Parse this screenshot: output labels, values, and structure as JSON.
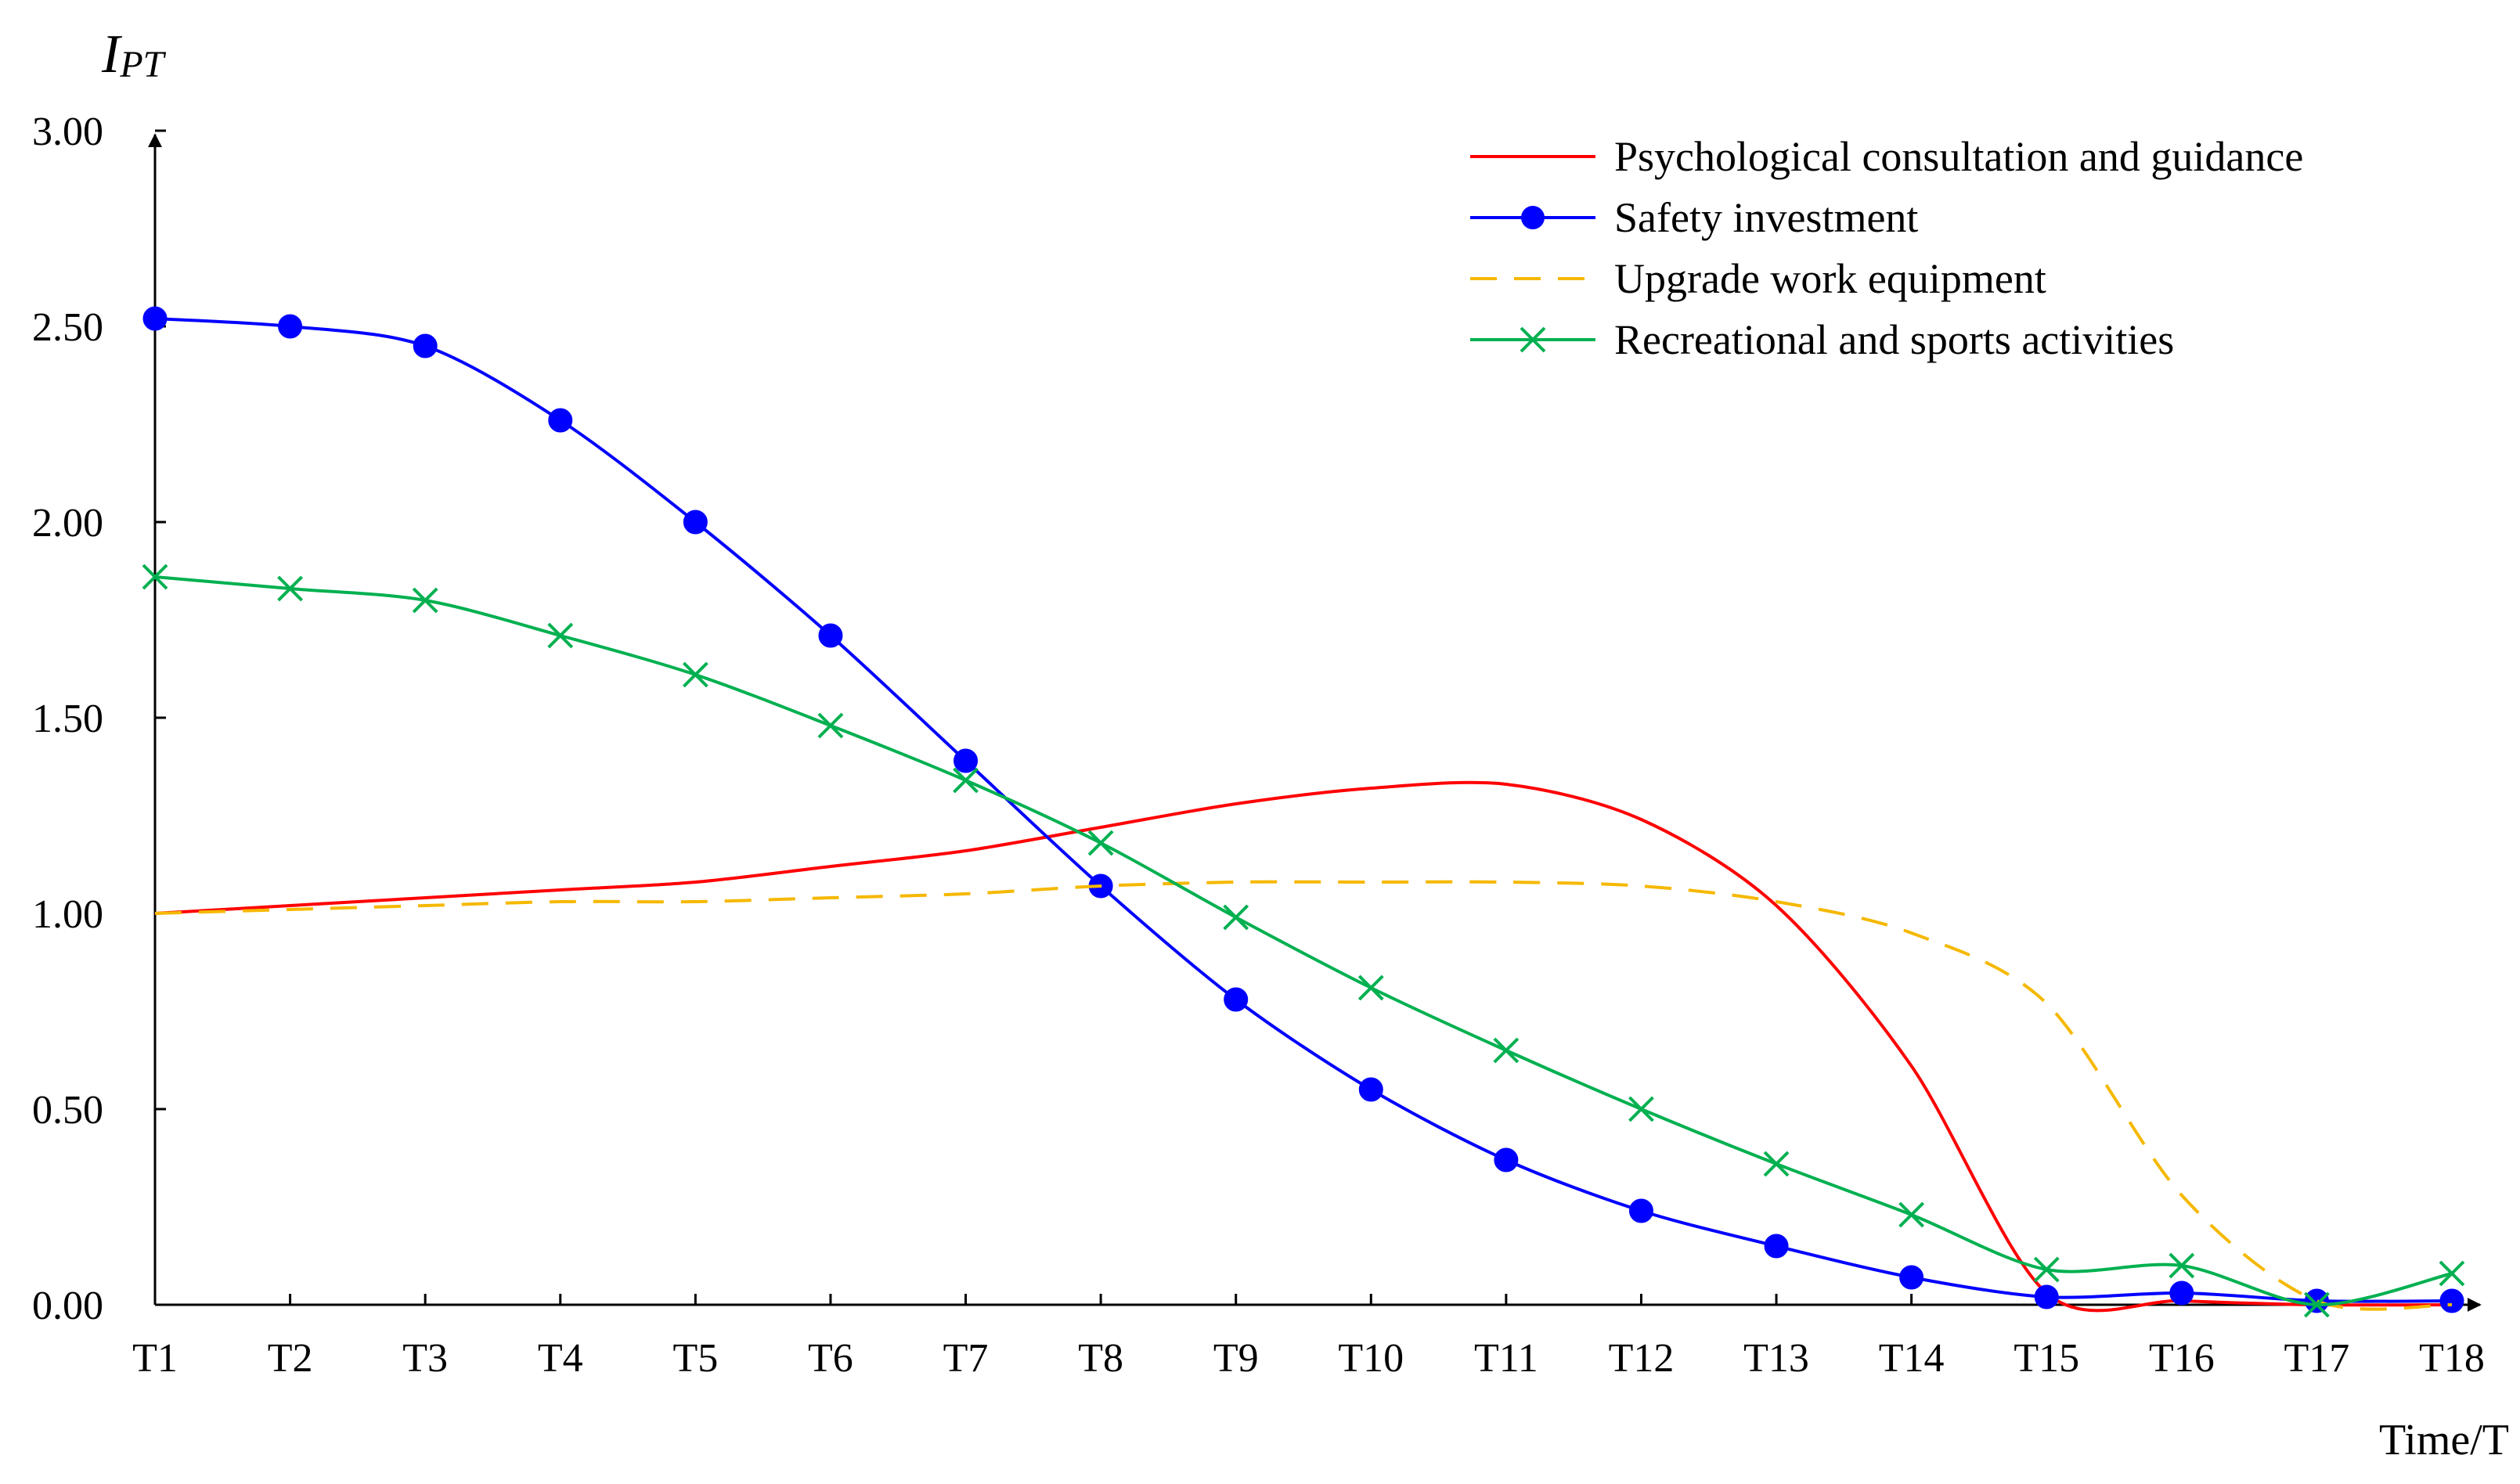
{
  "chart_data": {
    "type": "line",
    "title": "",
    "ylabel": {
      "main": "I",
      "sub": "PT"
    },
    "xlabel": "Time/T",
    "ylim": [
      0,
      3
    ],
    "yticks": [
      "0.00",
      "0.50",
      "1.00",
      "1.50",
      "2.00",
      "2.50",
      "3.00"
    ],
    "ytick_values": [
      0,
      0.5,
      1,
      1.5,
      2,
      2.5,
      3
    ],
    "categories": [
      "T1",
      "T2",
      "T3",
      "T4",
      "T5",
      "T6",
      "T7",
      "T8",
      "T9",
      "T10",
      "T11",
      "T12",
      "T13",
      "T14",
      "T15",
      "T16",
      "T17",
      "T18"
    ],
    "legend_position": "top-right",
    "series": [
      {
        "name": "Psychological consultation and guidance",
        "color": "#ff0000",
        "style": "solid",
        "marker": "none",
        "values": [
          1.0,
          1.02,
          1.04,
          1.06,
          1.08,
          1.12,
          1.16,
          1.22,
          1.28,
          1.32,
          1.33,
          1.24,
          1.02,
          0.61,
          0.03,
          0.01,
          0.0,
          0.0
        ]
      },
      {
        "name": "Safety investment",
        "color": "#0000ff",
        "style": "solid",
        "marker": "circle",
        "values": [
          2.52,
          2.5,
          2.45,
          2.26,
          2.0,
          1.71,
          1.39,
          1.07,
          0.78,
          0.55,
          0.37,
          0.24,
          0.15,
          0.07,
          0.02,
          0.03,
          0.01,
          0.01
        ]
      },
      {
        "name": "Upgrade work equipment",
        "color": "#f5b800",
        "style": "dashed",
        "marker": "none",
        "values": [
          1.0,
          1.01,
          1.02,
          1.03,
          1.03,
          1.04,
          1.05,
          1.07,
          1.08,
          1.08,
          1.08,
          1.07,
          1.03,
          0.95,
          0.77,
          0.28,
          0.01,
          0.0
        ]
      },
      {
        "name": "Recreational and sports activities",
        "color": "#00b050",
        "style": "solid",
        "marker": "x",
        "values": [
          1.86,
          1.83,
          1.8,
          1.71,
          1.61,
          1.48,
          1.34,
          1.18,
          0.99,
          0.81,
          0.65,
          0.5,
          0.36,
          0.23,
          0.09,
          0.1,
          0.0,
          0.08
        ]
      }
    ]
  }
}
